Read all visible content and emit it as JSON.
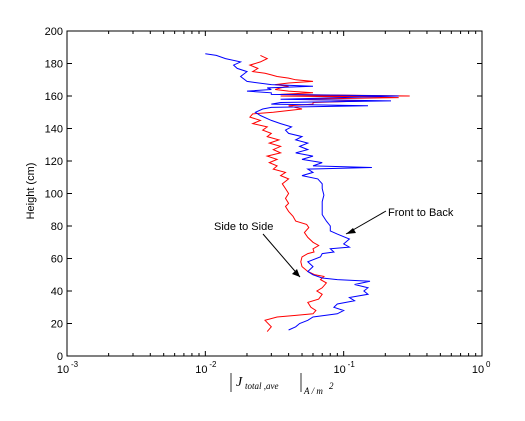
{
  "chart_data": {
    "type": "line",
    "xscale": "log",
    "xlim": [
      0.001,
      1
    ],
    "ylim": [
      0,
      200
    ],
    "grid": false,
    "ylabel": "Height (cm)",
    "xlabel": {
      "main": "J",
      "subscript": "total ,ave",
      "units": "A / m",
      "units_power": "2"
    },
    "x_ticks": [
      {
        "base": "10",
        "exp": "-3"
      },
      {
        "base": "10",
        "exp": "-2"
      },
      {
        "base": "10",
        "exp": "-1"
      },
      {
        "base": "10",
        "exp": "0"
      }
    ],
    "y_ticks": [
      "0",
      "20",
      "40",
      "60",
      "80",
      "100",
      "120",
      "140",
      "160",
      "180",
      "200"
    ],
    "series": [
      {
        "name": "Side to Side",
        "color": "#ff0000",
        "points": [
          [
            0.028,
            15
          ],
          [
            0.03,
            18
          ],
          [
            0.027,
            22
          ],
          [
            0.033,
            24
          ],
          [
            0.045,
            25
          ],
          [
            0.06,
            26
          ],
          [
            0.063,
            28
          ],
          [
            0.058,
            30
          ],
          [
            0.055,
            33
          ],
          [
            0.066,
            35
          ],
          [
            0.07,
            38
          ],
          [
            0.064,
            40
          ],
          [
            0.07,
            42
          ],
          [
            0.075,
            45
          ],
          [
            0.068,
            47
          ],
          [
            0.072,
            49
          ],
          [
            0.062,
            50
          ],
          [
            0.055,
            52
          ],
          [
            0.05,
            55
          ],
          [
            0.049,
            58
          ],
          [
            0.05,
            61
          ],
          [
            0.055,
            63
          ],
          [
            0.061,
            64
          ],
          [
            0.06,
            66
          ],
          [
            0.066,
            68
          ],
          [
            0.06,
            70
          ],
          [
            0.055,
            73
          ],
          [
            0.052,
            76
          ],
          [
            0.056,
            79
          ],
          [
            0.054,
            81
          ],
          [
            0.045,
            83
          ],
          [
            0.043,
            86
          ],
          [
            0.04,
            89
          ],
          [
            0.038,
            92
          ],
          [
            0.04,
            94
          ],
          [
            0.038,
            97
          ],
          [
            0.04,
            100
          ],
          [
            0.038,
            103
          ],
          [
            0.036,
            106
          ],
          [
            0.04,
            109
          ],
          [
            0.035,
            111
          ],
          [
            0.038,
            113
          ],
          [
            0.031,
            115
          ],
          [
            0.033,
            117
          ],
          [
            0.029,
            119
          ],
          [
            0.033,
            121
          ],
          [
            0.028,
            123
          ],
          [
            0.035,
            125
          ],
          [
            0.031,
            127
          ],
          [
            0.035,
            129
          ],
          [
            0.029,
            131
          ],
          [
            0.034,
            133
          ],
          [
            0.028,
            135
          ],
          [
            0.03,
            137
          ],
          [
            0.026,
            139
          ],
          [
            0.028,
            141
          ],
          [
            0.022,
            143
          ],
          [
            0.025,
            145
          ],
          [
            0.021,
            147
          ],
          [
            0.022,
            149
          ],
          [
            0.031,
            150
          ],
          [
            0.05,
            152
          ],
          [
            0.04,
            154
          ],
          [
            0.06,
            155
          ],
          [
            0.06,
            156
          ],
          [
            0.15,
            157
          ],
          [
            0.045,
            158
          ],
          [
            0.25,
            159
          ],
          [
            0.035,
            160
          ],
          [
            0.3,
            160
          ],
          [
            0.035,
            161
          ],
          [
            0.06,
            162
          ],
          [
            0.04,
            163
          ],
          [
            0.032,
            164
          ],
          [
            0.035,
            165
          ],
          [
            0.04,
            166
          ],
          [
            0.032,
            167
          ],
          [
            0.04,
            168
          ],
          [
            0.06,
            169
          ],
          [
            0.045,
            170
          ],
          [
            0.04,
            171
          ],
          [
            0.033,
            172
          ],
          [
            0.03,
            173
          ],
          [
            0.027,
            174
          ],
          [
            0.022,
            175
          ],
          [
            0.024,
            177
          ],
          [
            0.021,
            179
          ],
          [
            0.025,
            181
          ],
          [
            0.028,
            183
          ],
          [
            0.025,
            185
          ]
        ]
      },
      {
        "name": "Front to Back",
        "color": "#0000ff",
        "points": [
          [
            0.04,
            16
          ],
          [
            0.045,
            18
          ],
          [
            0.048,
            20
          ],
          [
            0.055,
            22
          ],
          [
            0.06,
            24
          ],
          [
            0.09,
            26
          ],
          [
            0.1,
            28
          ],
          [
            0.085,
            30
          ],
          [
            0.09,
            32
          ],
          [
            0.12,
            34
          ],
          [
            0.11,
            36
          ],
          [
            0.15,
            38
          ],
          [
            0.14,
            40
          ],
          [
            0.15,
            42
          ],
          [
            0.12,
            44
          ],
          [
            0.155,
            46
          ],
          [
            0.09,
            47
          ],
          [
            0.07,
            48
          ],
          [
            0.06,
            50
          ],
          [
            0.055,
            52
          ],
          [
            0.06,
            55
          ],
          [
            0.055,
            58
          ],
          [
            0.068,
            61
          ],
          [
            0.07,
            63
          ],
          [
            0.085,
            64
          ],
          [
            0.08,
            66
          ],
          [
            0.11,
            67
          ],
          [
            0.1,
            69
          ],
          [
            0.11,
            72
          ],
          [
            0.09,
            75
          ],
          [
            0.08,
            77
          ],
          [
            0.08,
            80
          ],
          [
            0.075,
            83
          ],
          [
            0.07,
            87
          ],
          [
            0.07,
            91
          ],
          [
            0.07,
            95
          ],
          [
            0.072,
            99
          ],
          [
            0.07,
            103
          ],
          [
            0.07,
            106
          ],
          [
            0.065,
            109
          ],
          [
            0.05,
            111
          ],
          [
            0.06,
            113
          ],
          [
            0.055,
            115
          ],
          [
            0.16,
            116
          ],
          [
            0.06,
            117
          ],
          [
            0.07,
            119
          ],
          [
            0.05,
            121
          ],
          [
            0.06,
            123
          ],
          [
            0.045,
            125
          ],
          [
            0.055,
            127
          ],
          [
            0.048,
            129
          ],
          [
            0.055,
            131
          ],
          [
            0.045,
            133
          ],
          [
            0.05,
            135
          ],
          [
            0.04,
            137
          ],
          [
            0.038,
            139
          ],
          [
            0.042,
            141
          ],
          [
            0.035,
            143
          ],
          [
            0.03,
            145
          ],
          [
            0.025,
            148
          ],
          [
            0.023,
            150
          ],
          [
            0.026,
            152
          ],
          [
            0.03,
            153
          ],
          [
            0.15,
            154
          ],
          [
            0.03,
            155
          ],
          [
            0.035,
            156
          ],
          [
            0.22,
            157
          ],
          [
            0.035,
            158
          ],
          [
            0.25,
            160
          ],
          [
            0.03,
            161
          ],
          [
            0.03,
            162
          ],
          [
            0.02,
            163
          ],
          [
            0.03,
            164
          ],
          [
            0.028,
            165
          ],
          [
            0.06,
            166
          ],
          [
            0.03,
            167
          ],
          [
            0.02,
            169
          ],
          [
            0.018,
            172
          ],
          [
            0.02,
            175
          ],
          [
            0.017,
            177
          ],
          [
            0.016,
            179
          ],
          [
            0.018,
            181
          ],
          [
            0.014,
            183
          ],
          [
            0.012,
            185
          ],
          [
            0.01,
            186
          ]
        ]
      }
    ],
    "annotations": [
      {
        "text": "Side to Side",
        "series": "Side to Side",
        "arrow_to": [
          0.05,
          59
        ]
      },
      {
        "text": "Front to Back",
        "series": "Front to Back",
        "arrow_to": [
          0.08,
          79
        ]
      }
    ]
  }
}
